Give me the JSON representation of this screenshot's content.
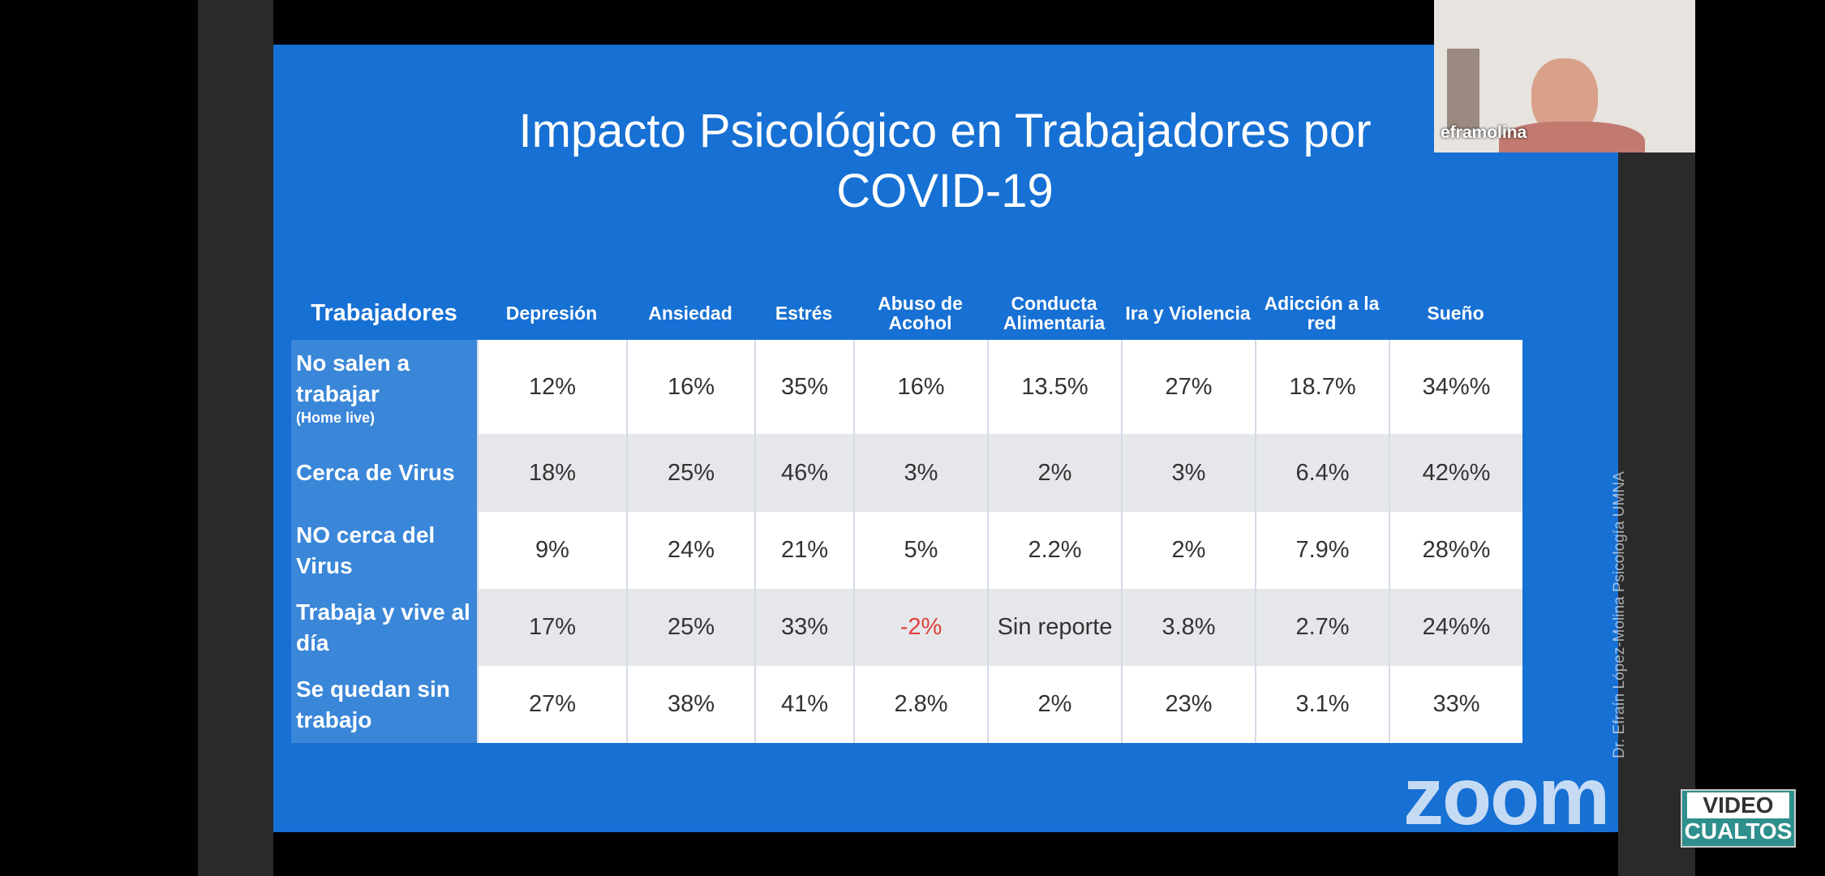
{
  "window": {
    "participant_name": "eframolina",
    "watermark": "zoom",
    "logo": {
      "line1": "VIDEO",
      "line2": "CUALTOS"
    }
  },
  "slide": {
    "title": "Impacto Psicológico en Trabajadores por COVID-19",
    "credit": "Dr. Efraín López-Molina  Psicología UMNA",
    "table": {
      "header": [
        "Trabajadores",
        "Depresión",
        "Ansiedad",
        "Estrés",
        "Abuso de Acohol",
        "Conducta Alimentaria",
        "Ira y Violencia",
        "Adicción a la red",
        "Sueño"
      ],
      "rows": [
        {
          "label": "No salen a trabajar",
          "note": "(Home live)",
          "cells": [
            "12%",
            "16%",
            "35%",
            "16%",
            "13.5%",
            "27%",
            "18.7%",
            "34%%"
          ]
        },
        {
          "label": "Cerca de Virus",
          "cells": [
            "18%",
            "25%",
            "46%",
            "3%",
            "2%",
            "3%",
            "6.4%",
            "42%%"
          ]
        },
        {
          "label": "NO cerca del Virus",
          "cells": [
            "9%",
            "24%",
            "21%",
            "5%",
            "2.2%",
            "2%",
            "7.9%",
            "28%%"
          ]
        },
        {
          "label": "Trabaja y vive al día",
          "cells": [
            "17%",
            "25%",
            "33%",
            "-2%",
            "Sin reporte",
            "3.8%",
            "2.7%",
            "24%%"
          ]
        },
        {
          "label": "Se quedan sin trabajo",
          "cells": [
            "27%",
            "38%",
            "41%",
            "2.8%",
            "2%",
            "23%",
            "3.1%",
            "33%"
          ]
        }
      ]
    }
  }
}
